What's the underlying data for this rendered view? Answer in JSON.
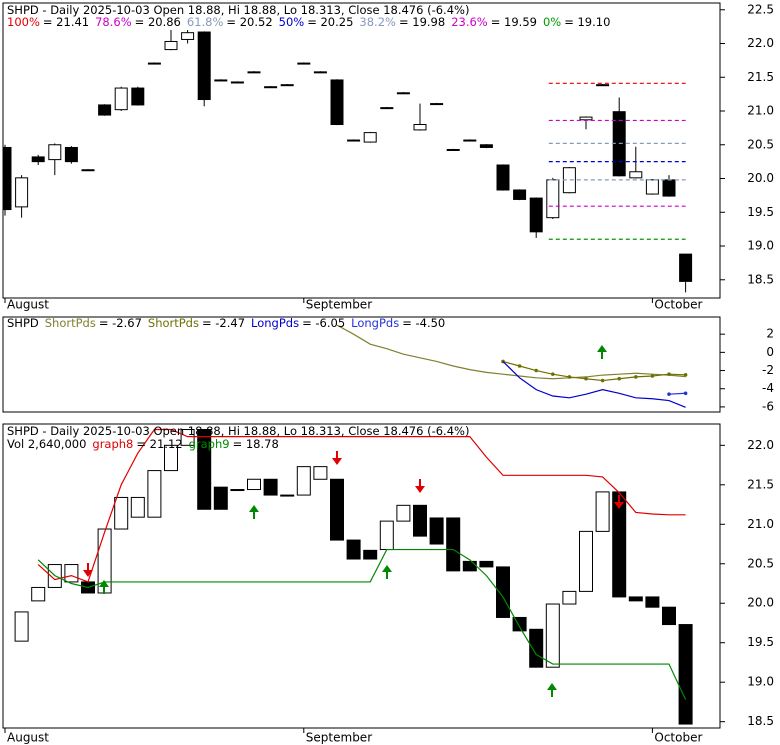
{
  "chart_data": [
    {
      "type": "candlestick",
      "title": "SHPD - Daily 2025-10-03 Open 18.88, Hi 18.88, Lo 18.313, Close 18.476 (-6.4%)",
      "categories": [
        "August",
        null,
        null,
        null,
        null,
        null,
        null,
        null,
        null,
        null,
        null,
        null,
        null,
        null,
        null,
        null,
        null,
        null,
        "September",
        null,
        null,
        null,
        null,
        null,
        null,
        null,
        null,
        null,
        null,
        null,
        null,
        null,
        null,
        null,
        null,
        null,
        null,
        null,
        null,
        "October",
        null,
        null
      ],
      "open": [
        20.46,
        19.58,
        20.32,
        20.28,
        20.46,
        20.13,
        21.09,
        21.02,
        21.34,
        21.71,
        21.91,
        22.06,
        22.17,
        21.46,
        21.43,
        21.58,
        21.36,
        21.39,
        21.71,
        21.58,
        21.46,
        20.57,
        20.54,
        21.05,
        21.27,
        20.72,
        21.11,
        20.43,
        20.57,
        20.5,
        20.2,
        19.83,
        19.71,
        19.42,
        19.79,
        20.87,
        21.39,
        20.99,
        20.01,
        19.77,
        19.98,
        18.88
      ],
      "high": [
        20.5,
        20.05,
        20.35,
        20.52,
        20.48,
        20.14,
        21.1,
        21.36,
        21.36,
        21.72,
        22.2,
        22.2,
        22.18,
        21.47,
        21.44,
        21.59,
        21.37,
        21.4,
        21.72,
        21.59,
        21.47,
        20.58,
        20.69,
        21.06,
        21.28,
        21.11,
        21.12,
        20.44,
        20.58,
        20.51,
        20.21,
        19.84,
        19.72,
        20.01,
        20.17,
        20.92,
        21.4,
        21.2,
        20.47,
        19.99,
        20.05,
        18.88
      ],
      "low": [
        19.45,
        19.42,
        20.2,
        20.05,
        20.22,
        20.12,
        20.93,
        21.0,
        21.08,
        21.7,
        21.9,
        22.0,
        21.07,
        21.45,
        21.42,
        21.57,
        21.35,
        21.38,
        21.7,
        21.57,
        20.79,
        20.56,
        20.53,
        21.04,
        21.26,
        20.71,
        21.1,
        20.42,
        20.56,
        20.45,
        19.82,
        19.68,
        19.12,
        19.4,
        19.78,
        20.73,
        21.38,
        20.03,
        20.0,
        19.76,
        19.73,
        18.313
      ],
      "close": [
        19.54,
        20.01,
        20.25,
        20.5,
        20.25,
        20.13,
        20.94,
        21.34,
        21.09,
        21.71,
        22.03,
        22.16,
        21.17,
        21.46,
        21.43,
        21.58,
        21.36,
        21.39,
        21.71,
        21.58,
        20.8,
        20.57,
        20.68,
        21.05,
        21.27,
        20.8,
        21.11,
        20.43,
        20.57,
        20.46,
        19.83,
        19.69,
        19.21,
        19.98,
        20.16,
        20.91,
        21.39,
        20.04,
        20.1,
        19.98,
        19.74,
        18.476
      ],
      "fib_levels": [
        {
          "name": "100%",
          "value": 21.41,
          "value_label": "= 21.41",
          "color": "#e00000"
        },
        {
          "name": "78.6%",
          "value": 20.86,
          "value_label": "= 20.86",
          "color": "#cc00cc"
        },
        {
          "name": "61.8%",
          "value": 20.52,
          "value_label": "= 20.52",
          "color": "#8899bb"
        },
        {
          "name": "50%",
          "value": 20.25,
          "value_label": "= 20.25",
          "color": "#0000cc"
        },
        {
          "name": "38.2%",
          "value": 19.98,
          "value_label": "= 19.98",
          "color": "#8899bb"
        },
        {
          "name": "23.6%",
          "value": 19.59,
          "value_label": "= 19.59",
          "color": "#cc00cc"
        },
        {
          "name": "0%",
          "value": 19.1,
          "value_label": "= 19.10",
          "color": "#009900"
        }
      ],
      "ylim": [
        18.23,
        22.6
      ],
      "yticks": [
        18.5,
        {
          "value": 19,
          "label": "19.0"
        },
        19.5,
        {
          "value": 20,
          "label": "20.0"
        },
        20.5,
        {
          "value": 21,
          "label": "21.0"
        },
        21.5,
        {
          "value": 22,
          "label": "22.0"
        },
        22.5
      ]
    },
    {
      "type": "line",
      "symbol": "SHPD",
      "series": [
        {
          "name": "ShortPds",
          "value_label": "= -2.67",
          "color": "#808030",
          "values": [
            null,
            null,
            null,
            null,
            null,
            null,
            null,
            null,
            null,
            null,
            null,
            null,
            null,
            null,
            null,
            null,
            null,
            null,
            null,
            null,
            3.0,
            2.0,
            0.9,
            0.4,
            -0.2,
            -0.6,
            -1.0,
            -1.5,
            -1.9,
            -2.2,
            -2.4,
            -2.6,
            -2.8,
            -2.9,
            -2.8,
            -2.7,
            -2.5,
            -2.4,
            -2.3,
            -2.4,
            -2.5,
            -2.67
          ]
        },
        {
          "name": "ShortPds",
          "value_label": "= -2.47",
          "color": "#707000",
          "values": [
            null,
            null,
            null,
            null,
            null,
            null,
            null,
            null,
            null,
            null,
            null,
            null,
            null,
            null,
            null,
            null,
            null,
            null,
            null,
            null,
            null,
            null,
            null,
            null,
            null,
            null,
            null,
            null,
            null,
            null,
            -1.0,
            -1.5,
            -2.0,
            -2.4,
            -2.7,
            -2.9,
            -3.1,
            -2.9,
            -2.7,
            -2.6,
            -2.4,
            -2.47
          ]
        },
        {
          "name": "LongPds",
          "value_label": "= -6.05",
          "color": "#0000cc",
          "values": [
            null,
            null,
            null,
            null,
            null,
            null,
            null,
            null,
            null,
            null,
            null,
            null,
            null,
            null,
            null,
            null,
            null,
            null,
            null,
            null,
            null,
            null,
            null,
            null,
            null,
            null,
            null,
            null,
            null,
            null,
            -1.0,
            -2.8,
            -4.1,
            -4.8,
            -5.0,
            -4.6,
            -4.1,
            -4.5,
            -5.0,
            -5.1,
            -5.3,
            -6.05
          ]
        },
        {
          "name": "LongPds",
          "value_label": "= -4.50",
          "color": "#2233dd",
          "values": [
            null,
            null,
            null,
            null,
            null,
            null,
            null,
            null,
            null,
            null,
            null,
            null,
            null,
            null,
            null,
            null,
            null,
            null,
            null,
            null,
            null,
            null,
            null,
            null,
            null,
            null,
            null,
            null,
            null,
            null,
            null,
            null,
            null,
            null,
            null,
            null,
            null,
            null,
            null,
            null,
            -4.6,
            -4.5
          ]
        }
      ],
      "ylim": [
        -6.56,
        3.89
      ],
      "yticks": [
        -6,
        -4,
        -2,
        0,
        2
      ]
    },
    {
      "type": "candlestick",
      "title": "SHPD - Daily 2025-10-03 Open 18.88, Hi 18.88, Lo 18.313, Close 18.476 (-6.4%)",
      "volume_label": "Vol 2,640,000",
      "categories": [
        "August",
        null,
        null,
        null,
        null,
        null,
        null,
        null,
        null,
        null,
        null,
        null,
        null,
        null,
        null,
        null,
        null,
        null,
        "September",
        null,
        null,
        null,
        null,
        null,
        null,
        null,
        null,
        null,
        null,
        null,
        null,
        null,
        null,
        null,
        null,
        null,
        null,
        null,
        null,
        "October",
        null,
        null
      ],
      "open": [
        null,
        19.52,
        20.03,
        20.2,
        20.27,
        20.27,
        20.13,
        20.94,
        21.09,
        21.09,
        21.68,
        22.0,
        22.2,
        21.47,
        21.44,
        21.44,
        21.57,
        21.37,
        21.37,
        21.57,
        21.57,
        20.8,
        20.67,
        20.68,
        21.04,
        21.24,
        21.08,
        21.08,
        20.53,
        20.53,
        20.46,
        19.82,
        19.67,
        19.19,
        19.99,
        20.15,
        20.91,
        21.41,
        20.08,
        20.08,
        19.95,
        19.73
      ],
      "close": [
        null,
        19.89,
        20.2,
        20.49,
        20.49,
        20.13,
        20.94,
        21.34,
        21.34,
        21.68,
        22.0,
        22.2,
        21.19,
        21.19,
        21.44,
        21.57,
        21.37,
        21.37,
        21.73,
        21.73,
        20.8,
        20.56,
        20.56,
        21.04,
        21.24,
        20.85,
        20.75,
        20.41,
        20.41,
        20.46,
        19.82,
        19.65,
        19.19,
        19.99,
        20.15,
        20.91,
        21.41,
        20.08,
        20.03,
        19.95,
        19.73,
        18.47
      ],
      "series": [
        {
          "name": "graph8",
          "value_label": "= 21.12",
          "color": "#e00000",
          "values": [
            null,
            null,
            20.49,
            20.3,
            20.35,
            20.27,
            20.9,
            21.5,
            21.9,
            22.2,
            22.2,
            22.11,
            22.11,
            22.11,
            22.11,
            22.11,
            22.11,
            22.11,
            22.11,
            22.11,
            22.11,
            22.11,
            22.11,
            22.11,
            22.11,
            22.11,
            22.11,
            22.11,
            22.11,
            21.85,
            21.62,
            21.62,
            21.62,
            21.62,
            21.62,
            21.62,
            21.6,
            21.4,
            21.15,
            21.13,
            21.12,
            21.12
          ]
        },
        {
          "name": "graph9",
          "value_label": "= 18.78",
          "color": "#008800",
          "values": [
            null,
            null,
            20.55,
            20.35,
            20.25,
            20.2,
            20.27,
            20.27,
            20.27,
            20.27,
            20.27,
            20.27,
            20.27,
            20.27,
            20.27,
            20.27,
            20.27,
            20.27,
            20.27,
            20.27,
            20.27,
            20.27,
            20.27,
            20.68,
            20.68,
            20.68,
            20.68,
            20.68,
            20.55,
            20.35,
            20.08,
            19.7,
            19.35,
            19.23,
            19.23,
            19.23,
            19.23,
            19.23,
            19.23,
            19.23,
            19.23,
            18.78
          ]
        }
      ],
      "ylim": [
        18.42,
        22.27
      ],
      "yticks": [
        18.5,
        {
          "value": 19,
          "label": "19.0"
        },
        19.5,
        {
          "value": 20,
          "label": "20.0"
        },
        20.5,
        {
          "value": 21,
          "label": "21.0"
        },
        21.5,
        {
          "value": 22,
          "label": "22.0"
        }
      ]
    }
  ]
}
